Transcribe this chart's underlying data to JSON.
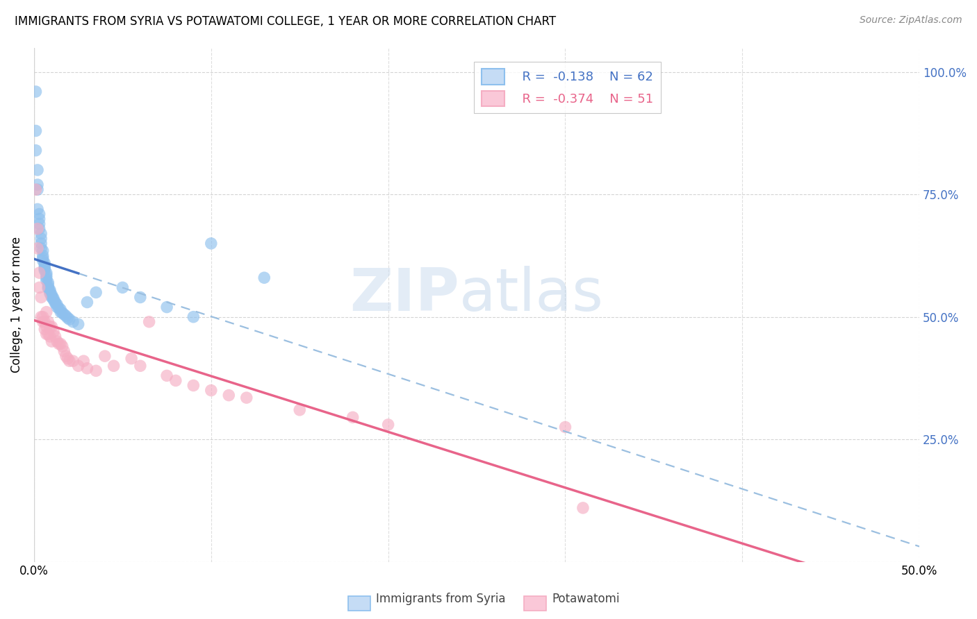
{
  "title": "IMMIGRANTS FROM SYRIA VS POTAWATOMI COLLEGE, 1 YEAR OR MORE CORRELATION CHART",
  "source": "Source: ZipAtlas.com",
  "ylabel": "College, 1 year or more",
  "xlim": [
    0.0,
    0.5
  ],
  "ylim": [
    0.0,
    1.05
  ],
  "legend_labels": [
    "Immigrants from Syria",
    "Potawatomi"
  ],
  "blue_color": "#8ec0ee",
  "pink_color": "#f5aec3",
  "blue_line_color": "#4472c4",
  "pink_line_color": "#e8648a",
  "blue_dashed_color": "#9bbfe0",
  "R_blue": -0.138,
  "N_blue": 62,
  "R_pink": -0.374,
  "N_pink": 51,
  "blue_x": [
    0.001,
    0.001,
    0.001,
    0.002,
    0.002,
    0.002,
    0.002,
    0.003,
    0.003,
    0.003,
    0.003,
    0.004,
    0.004,
    0.004,
    0.004,
    0.005,
    0.005,
    0.005,
    0.005,
    0.006,
    0.006,
    0.006,
    0.006,
    0.006,
    0.007,
    0.007,
    0.007,
    0.007,
    0.008,
    0.008,
    0.008,
    0.008,
    0.009,
    0.009,
    0.009,
    0.01,
    0.01,
    0.01,
    0.011,
    0.011,
    0.012,
    0.012,
    0.013,
    0.013,
    0.014,
    0.015,
    0.015,
    0.016,
    0.017,
    0.018,
    0.019,
    0.02,
    0.022,
    0.025,
    0.03,
    0.035,
    0.05,
    0.06,
    0.075,
    0.09,
    0.1,
    0.13
  ],
  "blue_y": [
    0.96,
    0.88,
    0.84,
    0.8,
    0.77,
    0.76,
    0.72,
    0.71,
    0.7,
    0.69,
    0.68,
    0.67,
    0.66,
    0.65,
    0.64,
    0.635,
    0.625,
    0.62,
    0.615,
    0.61,
    0.605,
    0.6,
    0.598,
    0.595,
    0.59,
    0.585,
    0.58,
    0.575,
    0.57,
    0.565,
    0.56,
    0.558,
    0.555,
    0.552,
    0.548,
    0.545,
    0.542,
    0.54,
    0.538,
    0.535,
    0.53,
    0.528,
    0.525,
    0.52,
    0.518,
    0.515,
    0.51,
    0.508,
    0.505,
    0.502,
    0.498,
    0.495,
    0.49,
    0.485,
    0.53,
    0.55,
    0.56,
    0.54,
    0.52,
    0.5,
    0.65,
    0.58
  ],
  "pink_x": [
    0.001,
    0.002,
    0.002,
    0.003,
    0.003,
    0.004,
    0.004,
    0.005,
    0.005,
    0.006,
    0.006,
    0.007,
    0.007,
    0.007,
    0.008,
    0.008,
    0.009,
    0.009,
    0.01,
    0.01,
    0.011,
    0.012,
    0.013,
    0.014,
    0.015,
    0.016,
    0.017,
    0.018,
    0.019,
    0.02,
    0.022,
    0.025,
    0.028,
    0.03,
    0.035,
    0.04,
    0.045,
    0.055,
    0.06,
    0.065,
    0.075,
    0.08,
    0.09,
    0.1,
    0.11,
    0.12,
    0.15,
    0.18,
    0.2,
    0.3,
    0.31
  ],
  "pink_y": [
    0.76,
    0.68,
    0.64,
    0.59,
    0.56,
    0.54,
    0.5,
    0.5,
    0.49,
    0.49,
    0.475,
    0.51,
    0.48,
    0.465,
    0.49,
    0.465,
    0.48,
    0.46,
    0.48,
    0.45,
    0.47,
    0.46,
    0.45,
    0.445,
    0.445,
    0.44,
    0.43,
    0.42,
    0.415,
    0.41,
    0.41,
    0.4,
    0.41,
    0.395,
    0.39,
    0.42,
    0.4,
    0.415,
    0.4,
    0.49,
    0.38,
    0.37,
    0.36,
    0.35,
    0.34,
    0.335,
    0.31,
    0.295,
    0.28,
    0.275,
    0.11
  ],
  "watermark_zip": "ZIP",
  "watermark_atlas": "atlas",
  "background_color": "#ffffff",
  "grid_color": "#d0d0d0"
}
